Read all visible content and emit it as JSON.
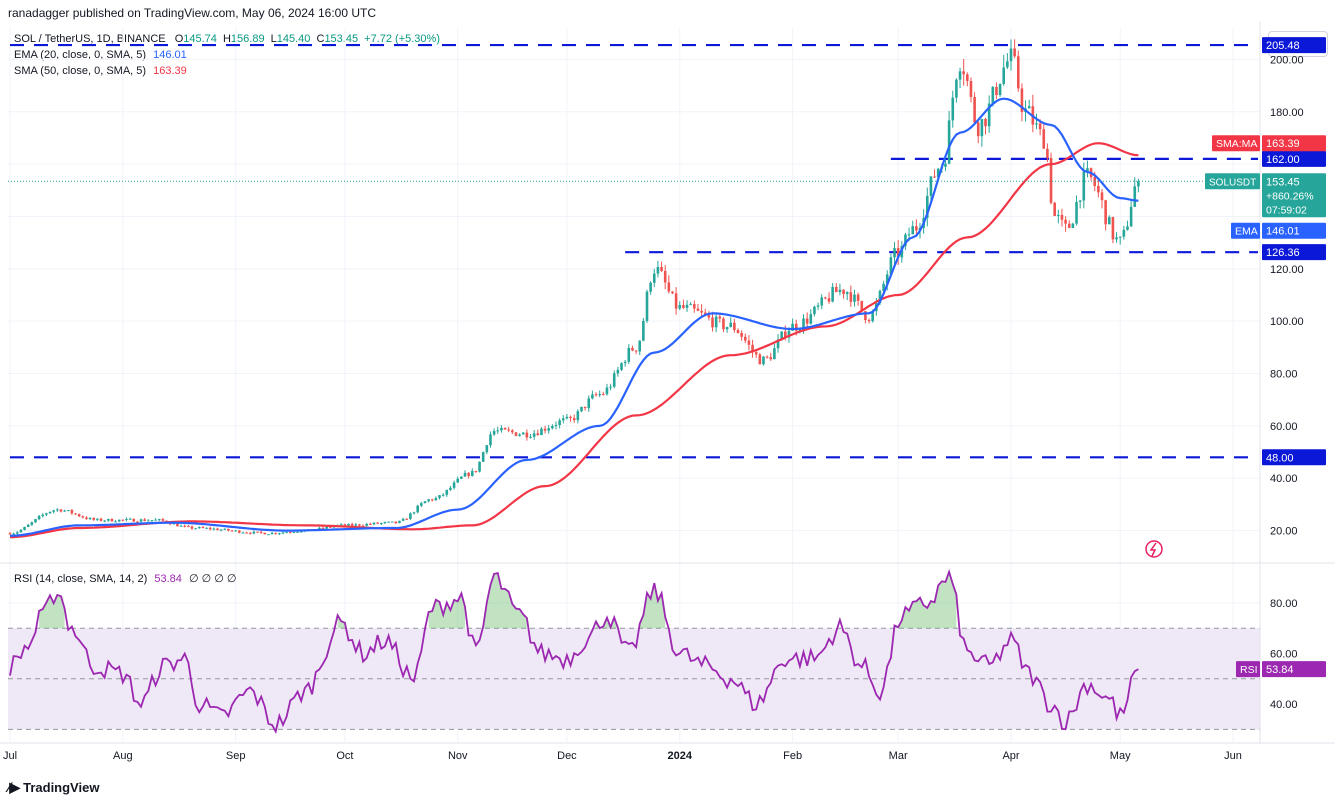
{
  "header": {
    "published": "ranadagger published on TradingView.com, May 06, 2024 16:00 UTC"
  },
  "legend": {
    "symbol_line": "SOL / TetherUS, 1D, BINANCE",
    "o_label": "O",
    "o": "145.74",
    "h_label": "H",
    "h": "156.89",
    "l_label": "L",
    "l": "145.40",
    "c_label": "C",
    "c": "153.45",
    "change": "+7.72 (+5.30%)",
    "ema_label": "EMA (20, close, 0, SMA, 5)",
    "ema_value": "146.01",
    "sma_label": "SMA (50, close, 0, SMA, 5)",
    "sma_value": "163.39"
  },
  "currency": "USDT",
  "rsi_legend": {
    "label": "RSI (14, close, SMA, 14, 2)",
    "value": "53.84",
    "extras": "∅ ∅ ∅ ∅"
  },
  "price_tags": {
    "level_205": "205.48",
    "sma_tag_label": "SMA:MA",
    "sma_tag_value": "163.39",
    "level_162": "162.00",
    "sym_label": "SOLUSDT",
    "sym_price": "153.45",
    "sym_change": "+860.26%",
    "sym_timer": "07:59:02",
    "ema_tag_label": "EMA",
    "ema_tag_value": "146.01",
    "level_126": "126.36",
    "level_48": "48.00",
    "rsi_tag_label": "RSI",
    "rsi_tag_value": "53.84"
  },
  "footer": {
    "brand": "TradingView",
    "icon": "tradingview-logo-icon"
  },
  "colors": {
    "up": "#26a69a",
    "down": "#ef5350",
    "ema": "#2962ff",
    "sma": "#f23645",
    "rsi": "#9c27b0",
    "level": "#0b18d8",
    "rsi_band": "#efe8f7",
    "grid": "#f0f3fa"
  },
  "chart_data": [
    {
      "type": "candlestick",
      "title": "SOL / TetherUS, 1D, BINANCE",
      "ylim": [
        8,
        212
      ],
      "y_ticks": [
        "20.00",
        "40.00",
        "60.00",
        "80.00",
        "100.00",
        "120.00",
        "180.00",
        "200.00"
      ],
      "x_ticks": [
        "Jul",
        "Aug",
        "Sep",
        "Oct",
        "Nov",
        "Dec",
        "2024",
        "Feb",
        "Mar",
        "Apr",
        "May",
        "Jun"
      ],
      "horizontal_levels": [
        205.48,
        162.0,
        126.36,
        48.0
      ],
      "last_price": 153.45,
      "price_anchors": [
        [
          "2023-07-01",
          19
        ],
        [
          "2023-07-14",
          28
        ],
        [
          "2023-07-25",
          24
        ],
        [
          "2023-08-10",
          24
        ],
        [
          "2023-08-20",
          21
        ],
        [
          "2023-09-10",
          19
        ],
        [
          "2023-09-20",
          20
        ],
        [
          "2023-10-01",
          22
        ],
        [
          "2023-10-15",
          23
        ],
        [
          "2023-10-25",
          32
        ],
        [
          "2023-11-05",
          42
        ],
        [
          "2023-11-11",
          58
        ],
        [
          "2023-11-20",
          57
        ],
        [
          "2023-12-01",
          62
        ],
        [
          "2023-12-10",
          72
        ],
        [
          "2023-12-20",
          90
        ],
        [
          "2023-12-25",
          120
        ],
        [
          "2024-01-01",
          105
        ],
        [
          "2024-01-15",
          98
        ],
        [
          "2024-01-24",
          85
        ],
        [
          "2024-02-01",
          98
        ],
        [
          "2024-02-15",
          112
        ],
        [
          "2024-02-22",
          102
        ],
        [
          "2024-03-01",
          126
        ],
        [
          "2024-03-05",
          135
        ],
        [
          "2024-03-13",
          160
        ],
        [
          "2024-03-18",
          200
        ],
        [
          "2024-03-23",
          175
        ],
        [
          "2024-04-01",
          200
        ],
        [
          "2024-04-05",
          180
        ],
        [
          "2024-04-10",
          170
        ],
        [
          "2024-04-13",
          140
        ],
        [
          "2024-04-16",
          135
        ],
        [
          "2024-04-22",
          155
        ],
        [
          "2024-05-01",
          130
        ],
        [
          "2024-05-06",
          153.45
        ]
      ],
      "ema_anchors": [
        [
          "2023-07-01",
          18
        ],
        [
          "2023-07-20",
          22
        ],
        [
          "2023-08-15",
          23
        ],
        [
          "2023-09-15",
          20
        ],
        [
          "2023-10-15",
          21
        ],
        [
          "2023-11-01",
          28
        ],
        [
          "2023-11-20",
          47
        ],
        [
          "2023-12-10",
          60
        ],
        [
          "2023-12-25",
          88
        ],
        [
          "2024-01-10",
          103
        ],
        [
          "2024-02-01",
          97
        ],
        [
          "2024-02-22",
          103
        ],
        [
          "2024-03-05",
          132
        ],
        [
          "2024-03-18",
          172
        ],
        [
          "2024-03-30",
          185
        ],
        [
          "2024-04-12",
          175
        ],
        [
          "2024-04-22",
          157
        ],
        [
          "2024-05-01",
          147
        ],
        [
          "2024-05-06",
          146.01
        ]
      ],
      "sma_anchors": [
        [
          "2023-07-01",
          17.5
        ],
        [
          "2023-07-20",
          21
        ],
        [
          "2023-08-20",
          23.5
        ],
        [
          "2023-09-20",
          22
        ],
        [
          "2023-10-20",
          20.5
        ],
        [
          "2023-11-05",
          22
        ],
        [
          "2023-11-25",
          37
        ],
        [
          "2023-12-20",
          64
        ],
        [
          "2024-01-15",
          87
        ],
        [
          "2024-02-10",
          98
        ],
        [
          "2024-03-01",
          110
        ],
        [
          "2024-03-20",
          132
        ],
        [
          "2024-04-12",
          160
        ],
        [
          "2024-04-25",
          168
        ],
        [
          "2024-05-06",
          163.39
        ]
      ]
    },
    {
      "type": "line",
      "title": "RSI (14, close, SMA, 14, 2)",
      "ylim": [
        25,
        95
      ],
      "y_ticks": [
        "40.00",
        "60.00",
        "80.00"
      ],
      "bands": [
        30,
        50,
        70
      ],
      "last_value": 53.84,
      "rsi_anchors": [
        [
          "2023-07-01",
          55
        ],
        [
          "2023-07-06",
          63
        ],
        [
          "2023-07-10",
          75
        ],
        [
          "2023-07-14",
          85
        ],
        [
          "2023-07-18",
          70
        ],
        [
          "2023-07-24",
          55
        ],
        [
          "2023-08-01",
          52
        ],
        [
          "2023-08-06",
          40
        ],
        [
          "2023-08-12",
          55
        ],
        [
          "2023-08-18",
          58
        ],
        [
          "2023-08-22",
          40
        ],
        [
          "2023-08-28",
          35
        ],
        [
          "2023-09-05",
          45
        ],
        [
          "2023-09-12",
          32
        ],
        [
          "2023-09-20",
          45
        ],
        [
          "2023-09-30",
          72
        ],
        [
          "2023-10-06",
          60
        ],
        [
          "2023-10-12",
          65
        ],
        [
          "2023-10-20",
          50
        ],
        [
          "2023-10-25",
          78
        ],
        [
          "2023-11-02",
          82
        ],
        [
          "2023-11-06",
          60
        ],
        [
          "2023-11-11",
          90
        ],
        [
          "2023-11-18",
          75
        ],
        [
          "2023-11-24",
          60
        ],
        [
          "2023-12-01",
          58
        ],
        [
          "2023-12-06",
          65
        ],
        [
          "2023-12-12",
          75
        ],
        [
          "2023-12-18",
          60
        ],
        [
          "2023-12-25",
          85
        ],
        [
          "2024-01-01",
          60
        ],
        [
          "2024-01-08",
          55
        ],
        [
          "2024-01-15",
          50
        ],
        [
          "2024-01-22",
          40
        ],
        [
          "2024-01-30",
          58
        ],
        [
          "2024-02-07",
          58
        ],
        [
          "2024-02-14",
          70
        ],
        [
          "2024-02-20",
          55
        ],
        [
          "2024-02-25",
          45
        ],
        [
          "2024-03-02",
          75
        ],
        [
          "2024-03-09",
          80
        ],
        [
          "2024-03-15",
          90
        ],
        [
          "2024-03-20",
          60
        ],
        [
          "2024-03-26",
          55
        ],
        [
          "2024-04-01",
          65
        ],
        [
          "2024-04-06",
          52
        ],
        [
          "2024-04-12",
          40
        ],
        [
          "2024-04-16",
          33
        ],
        [
          "2024-04-22",
          48
        ],
        [
          "2024-04-28",
          42
        ],
        [
          "2024-05-01",
          35
        ],
        [
          "2024-05-06",
          53.84
        ]
      ]
    }
  ]
}
